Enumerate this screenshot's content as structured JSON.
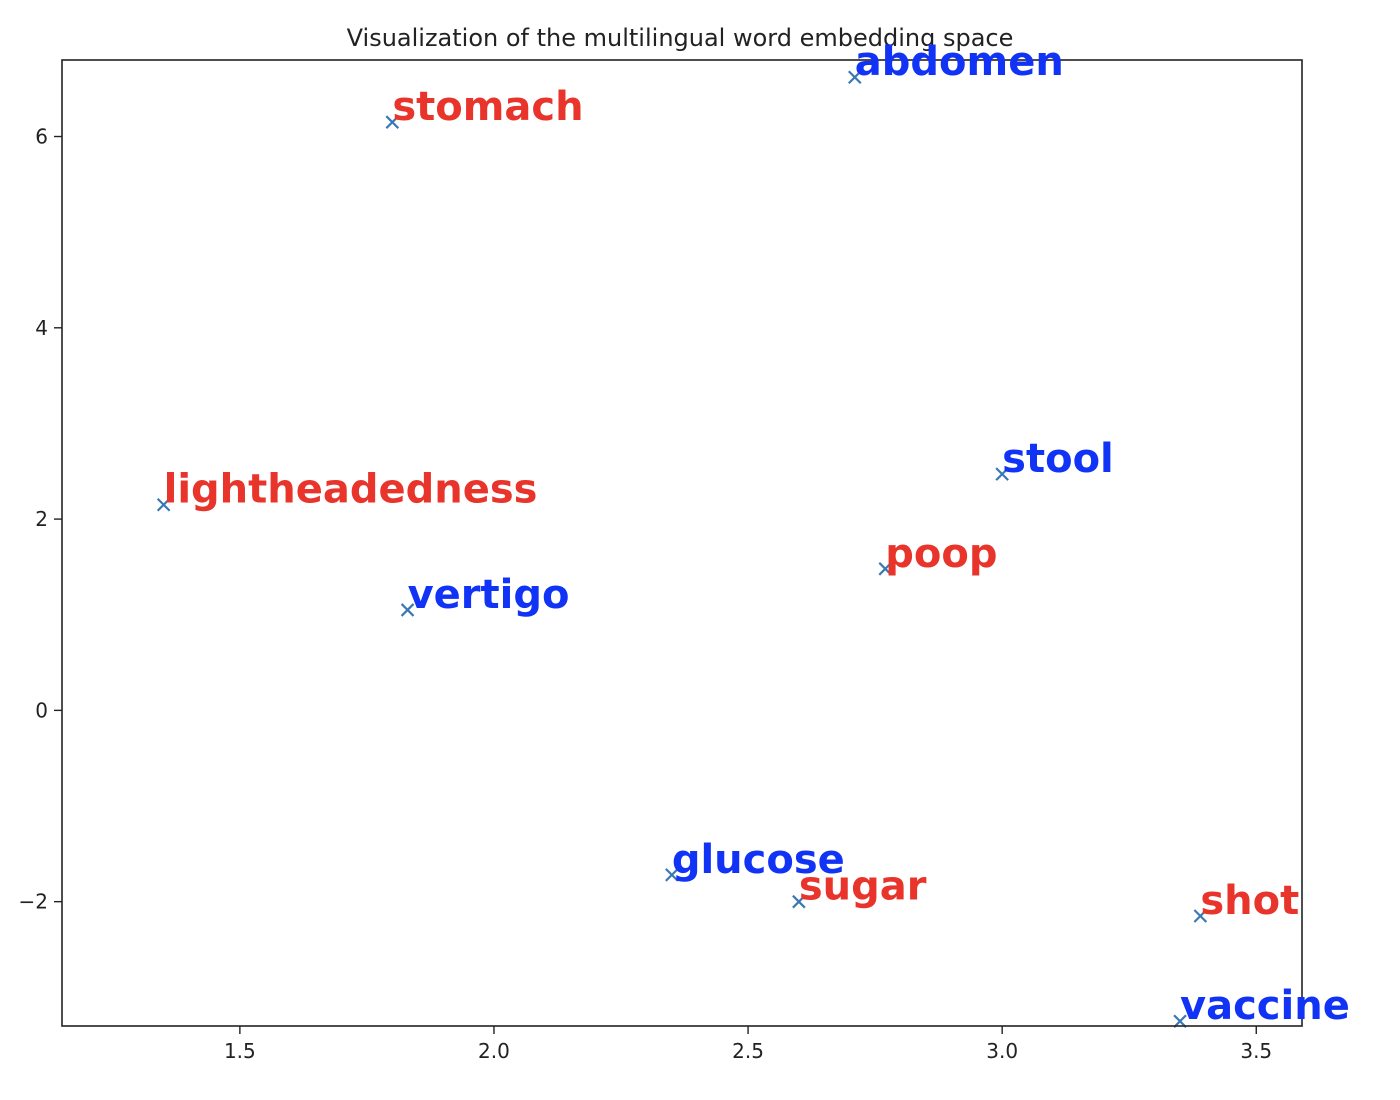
{
  "chart_data": {
    "type": "scatter",
    "title": "Visualization of the multilingual word embedding space",
    "xlabel": "",
    "ylabel": "",
    "xlim": [
      1.15,
      3.59
    ],
    "ylim": [
      -3.3,
      6.8
    ],
    "x_ticks": [
      {
        "value": 1.5,
        "label": "1.5"
      },
      {
        "value": 2.0,
        "label": "2.0"
      },
      {
        "value": 2.5,
        "label": "2.5"
      },
      {
        "value": 3.0,
        "label": "3.0"
      },
      {
        "value": 3.5,
        "label": "3.5"
      }
    ],
    "y_ticks": [
      {
        "value": -2,
        "label": "−2"
      },
      {
        "value": 0,
        "label": "0"
      },
      {
        "value": 2,
        "label": "2"
      },
      {
        "value": 4,
        "label": "4"
      },
      {
        "value": 6,
        "label": "6"
      }
    ],
    "grid": false,
    "marker": "x",
    "marker_color": "#3a78b5",
    "points": [
      {
        "x": 1.8,
        "y": 6.15,
        "label": "stomach",
        "color": "#e8342a"
      },
      {
        "x": 2.71,
        "y": 6.62,
        "label": "abdomen",
        "color": "#1133f5"
      },
      {
        "x": 1.35,
        "y": 2.15,
        "label": "lightheadedness",
        "color": "#e8342a"
      },
      {
        "x": 1.83,
        "y": 1.05,
        "label": "vertigo",
        "color": "#1133f5"
      },
      {
        "x": 3.0,
        "y": 2.47,
        "label": "stool",
        "color": "#1133f5"
      },
      {
        "x": 2.77,
        "y": 1.48,
        "label": "poop",
        "color": "#e8342a"
      },
      {
        "x": 2.35,
        "y": -1.72,
        "label": "glucose",
        "color": "#1133f5"
      },
      {
        "x": 2.6,
        "y": -2.0,
        "label": "sugar",
        "color": "#e8342a"
      },
      {
        "x": 3.39,
        "y": -2.15,
        "label": "shot",
        "color": "#e8342a"
      },
      {
        "x": 3.35,
        "y": -3.25,
        "label": "vaccine",
        "color": "#1133f5"
      }
    ]
  }
}
